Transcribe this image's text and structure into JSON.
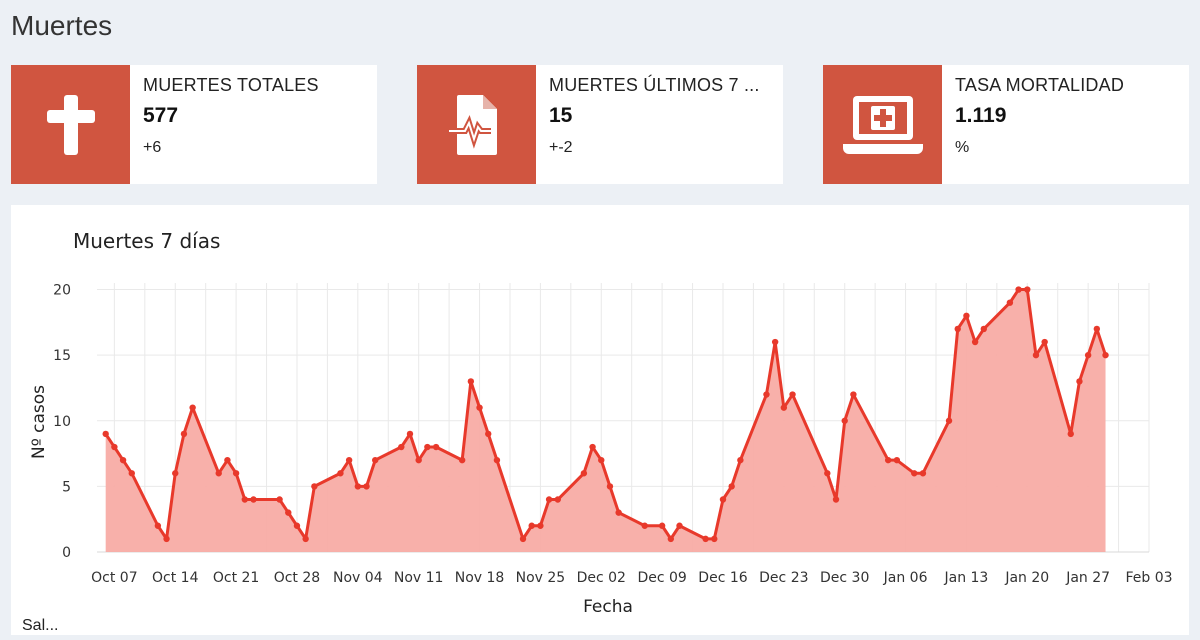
{
  "page": {
    "title": "Muertes"
  },
  "boxes": [
    {
      "label": "MUERTES TOTALES",
      "value": "577",
      "sub": "+6",
      "icon": "cross-icon"
    },
    {
      "label": "MUERTES ÚLTIMOS 7 ...",
      "value": "15",
      "sub": "+-2",
      "icon": "medical-file-icon"
    },
    {
      "label": "TASA MORTALIDAD",
      "value": "1.119",
      "sub": "%",
      "icon": "laptop-medical-icon"
    }
  ],
  "colors": {
    "accent": "#d05540",
    "line": "#e8392b",
    "fill": "#f8aca5",
    "grid": "#e9e9e9"
  },
  "chart_data": {
    "type": "area",
    "title": "Muertes 7 días",
    "xlabel": "Fecha",
    "ylabel": "Nº casos",
    "xlim": [
      "2020-10-05",
      "2021-02-03"
    ],
    "ylim": [
      0,
      20.5
    ],
    "yticks": [
      0,
      5,
      10,
      15,
      20
    ],
    "xticks": [
      {
        "date": "2020-10-07",
        "label": "Oct 07"
      },
      {
        "date": "2020-10-14",
        "label": "Oct 14"
      },
      {
        "date": "2020-10-21",
        "label": "Oct 21"
      },
      {
        "date": "2020-10-28",
        "label": "Oct 28"
      },
      {
        "date": "2020-11-04",
        "label": "Nov 04"
      },
      {
        "date": "2020-11-11",
        "label": "Nov 11"
      },
      {
        "date": "2020-11-18",
        "label": "Nov 18"
      },
      {
        "date": "2020-11-25",
        "label": "Nov 25"
      },
      {
        "date": "2020-12-02",
        "label": "Dec 02"
      },
      {
        "date": "2020-12-09",
        "label": "Dec 09"
      },
      {
        "date": "2020-12-16",
        "label": "Dec 16"
      },
      {
        "date": "2020-12-23",
        "label": "Dec 23"
      },
      {
        "date": "2020-12-30",
        "label": "Dec 30"
      },
      {
        "date": "2021-01-06",
        "label": "Jan 06"
      },
      {
        "date": "2021-01-13",
        "label": "Jan 13"
      },
      {
        "date": "2021-01-20",
        "label": "Jan 20"
      },
      {
        "date": "2021-01-27",
        "label": "Jan 27"
      },
      {
        "date": "2021-02-03",
        "label": "Feb 03"
      }
    ],
    "grid": true,
    "series": [
      {
        "points": [
          [
            "2020-10-06",
            9
          ],
          [
            "2020-10-07",
            8
          ],
          [
            "2020-10-08",
            7
          ],
          [
            "2020-10-09",
            6
          ],
          [
            "2020-10-12",
            2
          ],
          [
            "2020-10-13",
            1
          ],
          [
            "2020-10-14",
            6
          ],
          [
            "2020-10-15",
            9
          ],
          [
            "2020-10-16",
            11
          ],
          [
            "2020-10-19",
            6
          ],
          [
            "2020-10-20",
            7
          ],
          [
            "2020-10-21",
            6
          ],
          [
            "2020-10-22",
            4
          ],
          [
            "2020-10-23",
            4
          ],
          [
            "2020-10-26",
            4
          ],
          [
            "2020-10-27",
            3
          ],
          [
            "2020-10-28",
            2
          ],
          [
            "2020-10-29",
            1
          ],
          [
            "2020-10-30",
            5
          ],
          [
            "2020-11-02",
            6
          ],
          [
            "2020-11-03",
            7
          ],
          [
            "2020-11-04",
            5
          ],
          [
            "2020-11-05",
            5
          ],
          [
            "2020-11-06",
            7
          ],
          [
            "2020-11-09",
            8
          ],
          [
            "2020-11-10",
            9
          ],
          [
            "2020-11-11",
            7
          ],
          [
            "2020-11-12",
            8
          ],
          [
            "2020-11-13",
            8
          ],
          [
            "2020-11-16",
            7
          ],
          [
            "2020-11-17",
            13
          ],
          [
            "2020-11-18",
            11
          ],
          [
            "2020-11-19",
            9
          ],
          [
            "2020-11-20",
            7
          ],
          [
            "2020-11-23",
            1
          ],
          [
            "2020-11-24",
            2
          ],
          [
            "2020-11-25",
            2
          ],
          [
            "2020-11-26",
            4
          ],
          [
            "2020-11-27",
            4
          ],
          [
            "2020-11-30",
            6
          ],
          [
            "2020-12-01",
            8
          ],
          [
            "2020-12-02",
            7
          ],
          [
            "2020-12-03",
            5
          ],
          [
            "2020-12-04",
            3
          ],
          [
            "2020-12-07",
            2
          ],
          [
            "2020-12-09",
            2
          ],
          [
            "2020-12-10",
            1
          ],
          [
            "2020-12-11",
            2
          ],
          [
            "2020-12-14",
            1
          ],
          [
            "2020-12-15",
            1
          ],
          [
            "2020-12-16",
            4
          ],
          [
            "2020-12-17",
            5
          ],
          [
            "2020-12-18",
            7
          ],
          [
            "2020-12-21",
            12
          ],
          [
            "2020-12-22",
            16
          ],
          [
            "2020-12-23",
            11
          ],
          [
            "2020-12-24",
            12
          ],
          [
            "2020-12-28",
            6
          ],
          [
            "2020-12-29",
            4
          ],
          [
            "2020-12-30",
            10
          ],
          [
            "2020-12-31",
            12
          ],
          [
            "2021-01-04",
            7
          ],
          [
            "2021-01-05",
            7
          ],
          [
            "2021-01-07",
            6
          ],
          [
            "2021-01-08",
            6
          ],
          [
            "2021-01-11",
            10
          ],
          [
            "2021-01-12",
            17
          ],
          [
            "2021-01-13",
            18
          ],
          [
            "2021-01-14",
            16
          ],
          [
            "2021-01-15",
            17
          ],
          [
            "2021-01-18",
            19
          ],
          [
            "2021-01-19",
            20
          ],
          [
            "2021-01-20",
            20
          ],
          [
            "2021-01-21",
            15
          ],
          [
            "2021-01-22",
            16
          ],
          [
            "2021-01-25",
            9
          ],
          [
            "2021-01-26",
            13
          ],
          [
            "2021-01-27",
            15
          ],
          [
            "2021-01-28",
            17
          ],
          [
            "2021-01-29",
            15
          ]
        ]
      }
    ]
  },
  "footer_peek": "Sal..."
}
